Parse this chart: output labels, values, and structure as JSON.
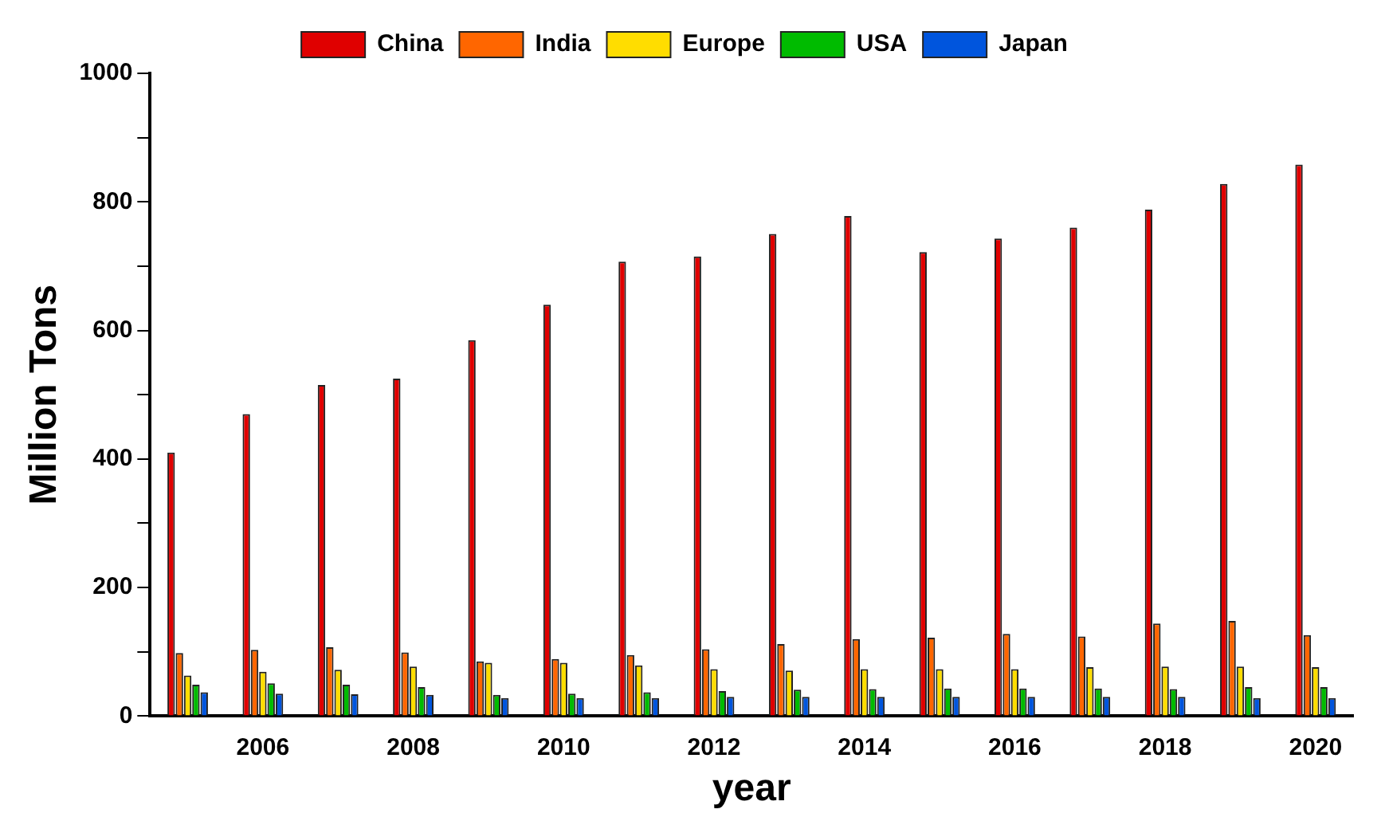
{
  "chart_data": {
    "type": "bar",
    "xlabel": "year",
    "ylabel": "Million Tons",
    "categories": [
      null,
      "2006",
      null,
      "2008",
      null,
      "2010",
      null,
      "2012",
      null,
      "2014",
      null,
      "2016",
      null,
      "2018",
      null,
      "2020"
    ],
    "series": [
      {
        "name": "China",
        "color": "#e00000",
        "values": [
          410,
          470,
          515,
          525,
          585,
          640,
          707,
          715,
          750,
          778,
          722,
          743,
          760,
          788,
          828,
          858
        ]
      },
      {
        "name": "India",
        "color": "#ff6600",
        "values": [
          98,
          103,
          107,
          99,
          85,
          89,
          95,
          104,
          112,
          120,
          122,
          128,
          124,
          144,
          148,
          126
        ]
      },
      {
        "name": "Europe",
        "color": "#ffdd00",
        "values": [
          63,
          69,
          72,
          77,
          83,
          83,
          79,
          73,
          71,
          73,
          73,
          73,
          76,
          77,
          77,
          76
        ]
      },
      {
        "name": "USA",
        "color": "#00bb00",
        "values": [
          49,
          51,
          49,
          45,
          33,
          35,
          37,
          39,
          41,
          42,
          43,
          43,
          43,
          42,
          45,
          45
        ]
      },
      {
        "name": "Japan",
        "color": "#0055dd",
        "values": [
          37,
          35,
          34,
          33,
          28,
          28,
          28,
          30,
          30,
          30,
          30,
          30,
          30,
          30,
          28,
          28
        ]
      }
    ],
    "ylim": [
      0,
      1000
    ],
    "yticks": [
      0,
      {
        "value": 100,
        "label": null
      },
      200,
      {
        "value": 300,
        "label": null
      },
      400,
      {
        "value": 500,
        "label": null
      },
      600,
      {
        "value": 700,
        "label": null
      },
      800,
      {
        "value": 900,
        "label": null
      },
      1000
    ],
    "grid": false,
    "legend": "top"
  }
}
